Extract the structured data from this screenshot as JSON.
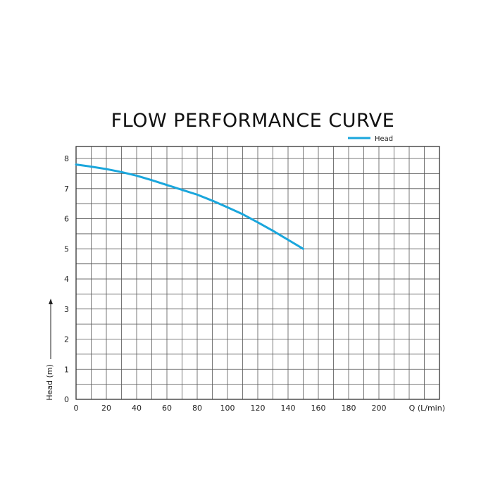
{
  "chart_data": {
    "type": "line",
    "title": "FLOW PERFORMANCE CURVE",
    "xlabel": "Q (L/min)",
    "ylabel": "Head (m)",
    "xlim": [
      0,
      240
    ],
    "ylim": [
      0,
      8.4
    ],
    "x_ticks": [
      "0",
      "20",
      "40",
      "60",
      "80",
      "100",
      "120",
      "140",
      "160",
      "180",
      "200"
    ],
    "y_ticks": [
      "0",
      "1",
      "2",
      "3",
      "4",
      "5",
      "6",
      "7",
      "8"
    ],
    "grid": true,
    "legend_position": "top-right",
    "series": [
      {
        "name": "Head",
        "color": "#1aa6dc",
        "x": [
          0,
          10,
          20,
          30,
          40,
          50,
          60,
          70,
          80,
          90,
          100,
          110,
          120,
          130,
          140,
          150
        ],
        "y": [
          7.8,
          7.73,
          7.65,
          7.55,
          7.43,
          7.28,
          7.12,
          6.96,
          6.8,
          6.6,
          6.38,
          6.15,
          5.88,
          5.6,
          5.3,
          5.0
        ]
      }
    ]
  }
}
